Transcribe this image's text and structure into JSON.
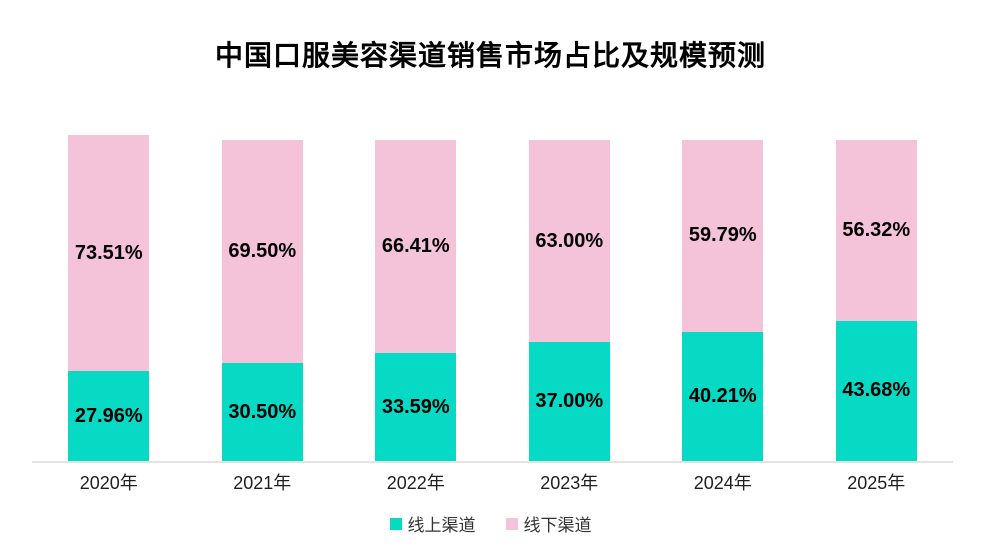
{
  "chart_data": {
    "type": "bar",
    "subtype": "stacked-percent",
    "title": "中国口服美容渠道销售市场占比及规模预测",
    "categories": [
      "2020年",
      "2021年",
      "2022年",
      "2023年",
      "2024年",
      "2025年"
    ],
    "series": [
      {
        "name": "线上渠道",
        "color": "#07dac4",
        "values": [
          27.96,
          30.5,
          33.59,
          37.0,
          40.21,
          43.68
        ],
        "labels": [
          "27.96%",
          "30.50%",
          "33.59%",
          "37.00%",
          "40.21%",
          "43.68%"
        ]
      },
      {
        "name": "线下渠道",
        "color": "#f5c3d9",
        "values": [
          73.51,
          69.5,
          66.41,
          63.0,
          59.79,
          56.32
        ],
        "labels": [
          "73.51%",
          "69.50%",
          "66.41%",
          "63.00%",
          "59.79%",
          "56.32%"
        ]
      }
    ],
    "xlabel": "",
    "ylabel": "",
    "ylim": [
      0,
      101.47
    ],
    "grid": false,
    "legend_position": "bottom",
    "axis_line_color": "#e3e3e3",
    "value_label_color": "#000000",
    "value_label_format": "0.00%"
  }
}
